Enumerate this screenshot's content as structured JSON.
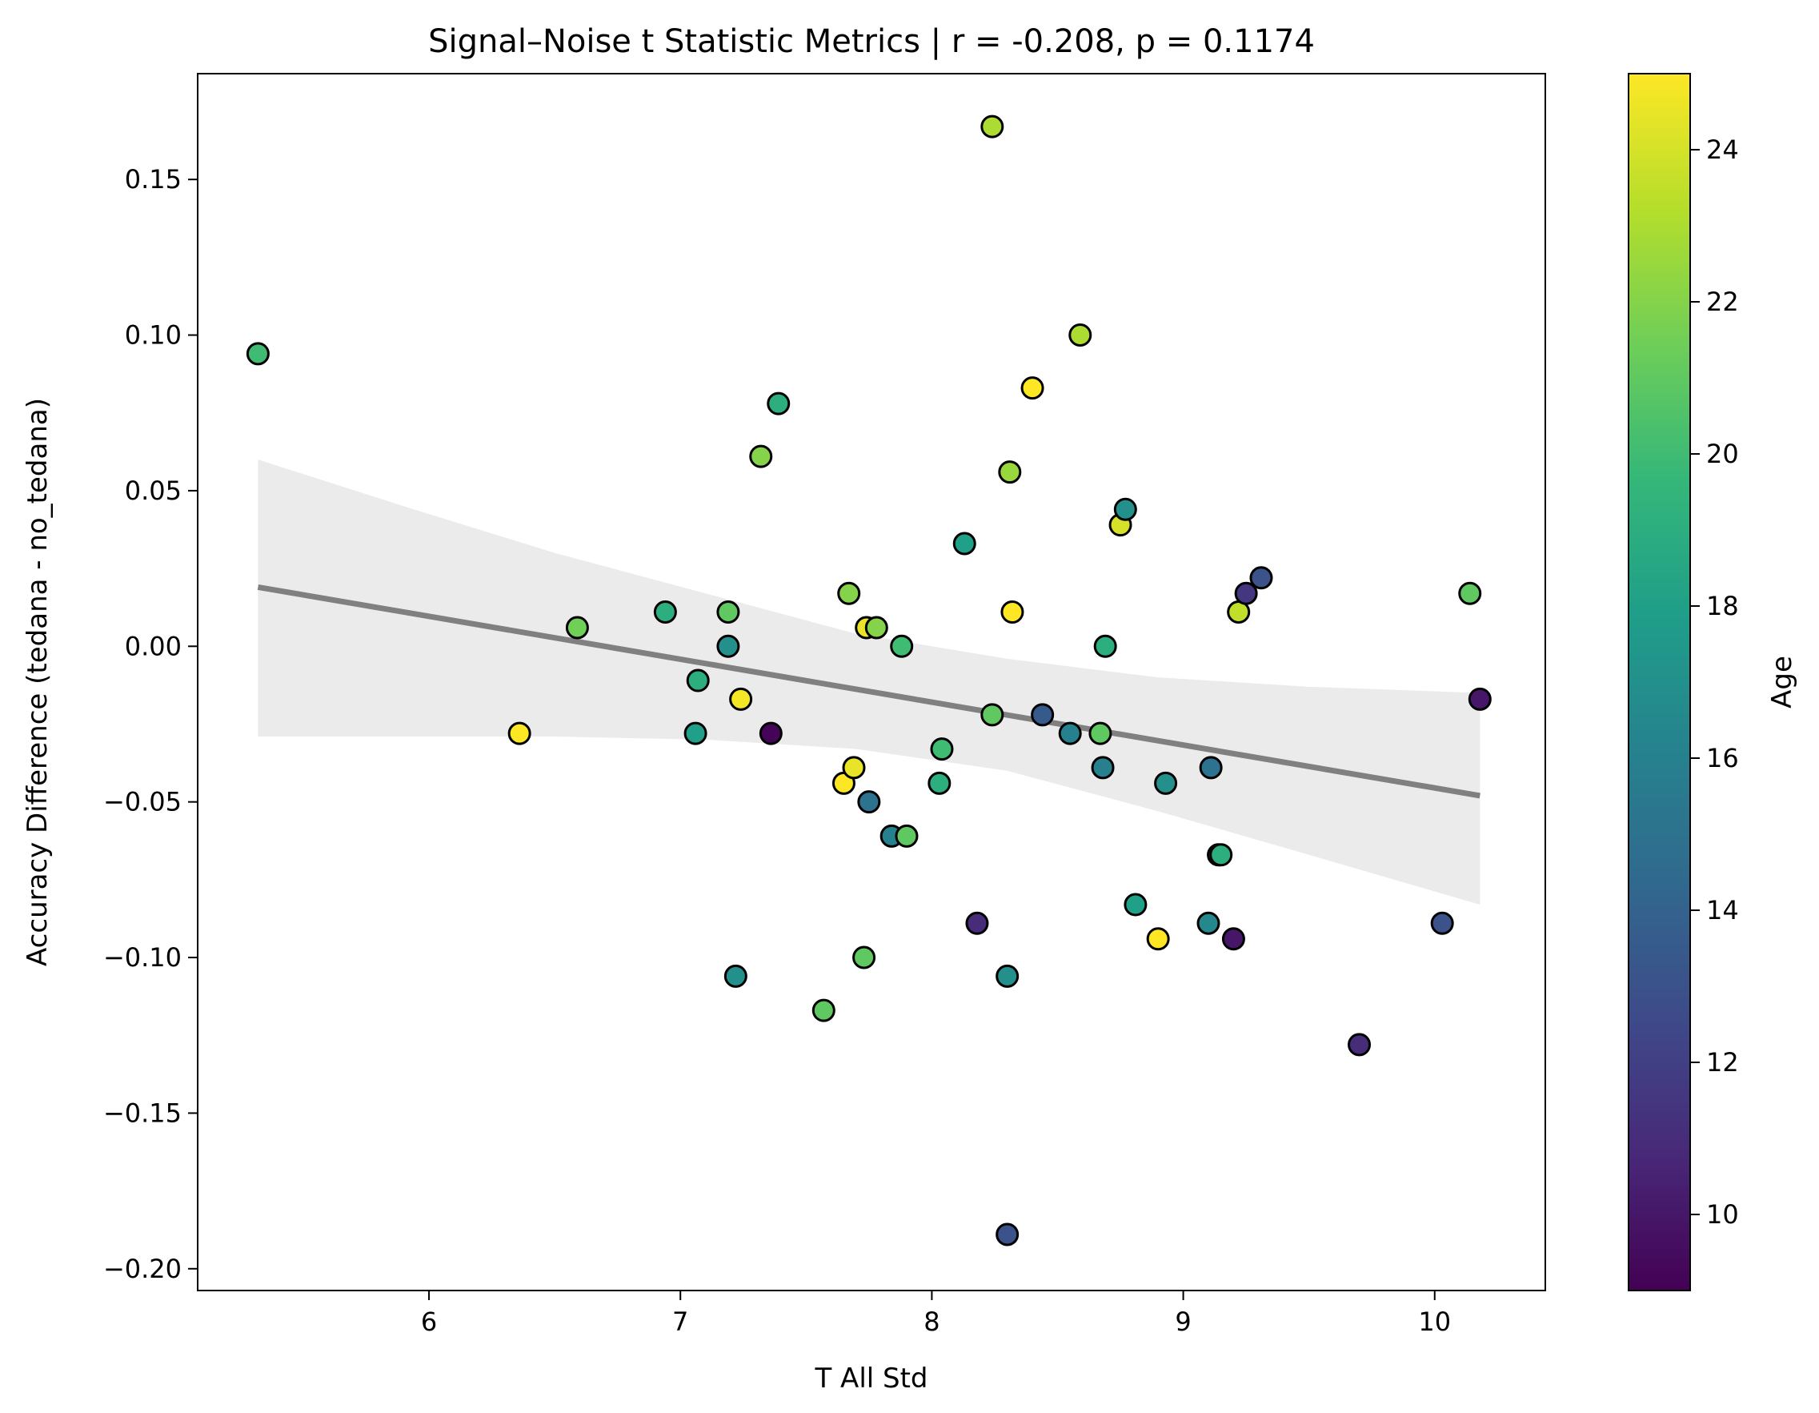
{
  "chart_data": {
    "type": "scatter",
    "title": "Signal–Noise t Statistic Metrics | r = -0.208, p = 0.1174",
    "xlabel": "T All Std",
    "ylabel": "Accuracy Difference (tedana - no_tedana)",
    "xlim": [
      5.08,
      10.44
    ],
    "ylim": [
      -0.207,
      0.184
    ],
    "xticks": [
      6,
      7,
      8,
      9,
      10
    ],
    "xtick_labels": [
      "6",
      "7",
      "8",
      "9",
      "10"
    ],
    "yticks": [
      -0.2,
      -0.15,
      -0.1,
      -0.05,
      0.0,
      0.05,
      0.1,
      0.15
    ],
    "ytick_labels": [
      "−0.20",
      "−0.15",
      "−0.10",
      "−0.05",
      "0.00",
      "0.05",
      "0.10",
      "0.15"
    ],
    "grid": false,
    "colormap": "viridis",
    "colorbar": {
      "label": "Age",
      "range": [
        9,
        25
      ],
      "ticks": [
        10,
        12,
        14,
        16,
        18,
        20,
        22,
        24
      ],
      "tick_labels": [
        "10",
        "12",
        "14",
        "16",
        "18",
        "20",
        "22",
        "24"
      ]
    },
    "regression": {
      "x": [
        5.32,
        10.18
      ],
      "y": [
        0.019,
        -0.048
      ],
      "color": "#808080",
      "ci_x": [
        5.32,
        5.9,
        6.5,
        7.1,
        7.7,
        8.3,
        8.9,
        9.5,
        10.18
      ],
      "ci_upper": [
        0.06,
        0.045,
        0.03,
        0.017,
        0.004,
        -0.004,
        -0.01,
        -0.013,
        -0.015
      ],
      "ci_lower": [
        -0.029,
        -0.029,
        -0.029,
        -0.03,
        -0.033,
        -0.04,
        -0.053,
        -0.067,
        -0.083
      ],
      "ci_color": "#ebebeb"
    },
    "points": [
      {
        "x": 5.32,
        "y": 0.094,
        "age": 20
      },
      {
        "x": 6.36,
        "y": -0.028,
        "age": 25
      },
      {
        "x": 6.59,
        "y": 0.006,
        "age": 21.5
      },
      {
        "x": 6.94,
        "y": 0.011,
        "age": 19
      },
      {
        "x": 7.06,
        "y": -0.028,
        "age": 18
      },
      {
        "x": 7.07,
        "y": -0.011,
        "age": 19
      },
      {
        "x": 7.19,
        "y": 0.011,
        "age": 21
      },
      {
        "x": 7.19,
        "y": 0.0,
        "age": 17
      },
      {
        "x": 7.22,
        "y": -0.106,
        "age": 17
      },
      {
        "x": 7.24,
        "y": -0.017,
        "age": 24.8
      },
      {
        "x": 7.32,
        "y": 0.061,
        "age": 22
      },
      {
        "x": 7.36,
        "y": -0.028,
        "age": 9.2
      },
      {
        "x": 7.39,
        "y": 0.078,
        "age": 19
      },
      {
        "x": 7.57,
        "y": -0.117,
        "age": 21
      },
      {
        "x": 7.65,
        "y": -0.044,
        "age": 25
      },
      {
        "x": 7.67,
        "y": 0.017,
        "age": 22
      },
      {
        "x": 7.69,
        "y": -0.039,
        "age": 24.5
      },
      {
        "x": 7.73,
        "y": -0.1,
        "age": 21
      },
      {
        "x": 7.74,
        "y": 0.006,
        "age": 24.5
      },
      {
        "x": 7.75,
        "y": -0.05,
        "age": 15
      },
      {
        "x": 7.78,
        "y": 0.006,
        "age": 22
      },
      {
        "x": 7.84,
        "y": -0.061,
        "age": 16
      },
      {
        "x": 7.88,
        "y": 0.0,
        "age": 20
      },
      {
        "x": 7.9,
        "y": -0.061,
        "age": 21
      },
      {
        "x": 8.03,
        "y": -0.044,
        "age": 19
      },
      {
        "x": 8.04,
        "y": -0.033,
        "age": 20
      },
      {
        "x": 8.13,
        "y": 0.033,
        "age": 18
      },
      {
        "x": 8.18,
        "y": -0.089,
        "age": 11
      },
      {
        "x": 8.24,
        "y": 0.167,
        "age": 23
      },
      {
        "x": 8.24,
        "y": -0.022,
        "age": 21
      },
      {
        "x": 8.3,
        "y": -0.106,
        "age": 17
      },
      {
        "x": 8.3,
        "y": -0.189,
        "age": 13
      },
      {
        "x": 8.31,
        "y": 0.056,
        "age": 22.5
      },
      {
        "x": 8.32,
        "y": 0.011,
        "age": 25
      },
      {
        "x": 8.4,
        "y": 0.083,
        "age": 25
      },
      {
        "x": 8.44,
        "y": -0.022,
        "age": 13.5
      },
      {
        "x": 8.55,
        "y": -0.028,
        "age": 16
      },
      {
        "x": 8.59,
        "y": 0.1,
        "age": 23
      },
      {
        "x": 8.67,
        "y": -0.028,
        "age": 21
      },
      {
        "x": 8.68,
        "y": -0.039,
        "age": 16
      },
      {
        "x": 8.69,
        "y": 0.0,
        "age": 19
      },
      {
        "x": 8.75,
        "y": 0.039,
        "age": 24
      },
      {
        "x": 8.77,
        "y": 0.044,
        "age": 17
      },
      {
        "x": 8.81,
        "y": -0.083,
        "age": 18
      },
      {
        "x": 8.9,
        "y": -0.094,
        "age": 25
      },
      {
        "x": 8.93,
        "y": -0.044,
        "age": 17
      },
      {
        "x": 9.1,
        "y": -0.089,
        "age": 16.5
      },
      {
        "x": 9.11,
        "y": -0.039,
        "age": 15
      },
      {
        "x": 9.14,
        "y": -0.067,
        "age": 18
      },
      {
        "x": 9.15,
        "y": -0.067,
        "age": 19
      },
      {
        "x": 9.2,
        "y": -0.094,
        "age": 10
      },
      {
        "x": 9.22,
        "y": 0.011,
        "age": 23.5
      },
      {
        "x": 9.25,
        "y": 0.017,
        "age": 11.5
      },
      {
        "x": 9.31,
        "y": 0.022,
        "age": 13
      },
      {
        "x": 9.7,
        "y": -0.128,
        "age": 11
      },
      {
        "x": 10.03,
        "y": -0.089,
        "age": 13
      },
      {
        "x": 10.14,
        "y": 0.017,
        "age": 21
      },
      {
        "x": 10.18,
        "y": -0.017,
        "age": 10
      }
    ]
  }
}
